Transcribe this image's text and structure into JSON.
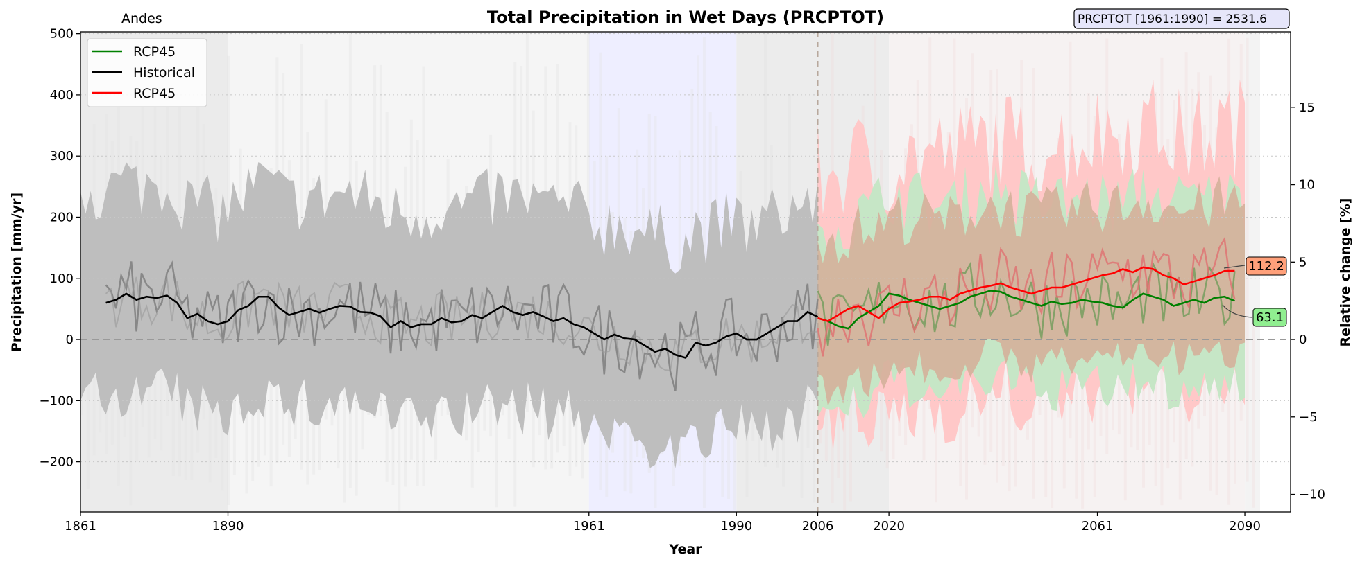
{
  "chart_data": {
    "type": "line",
    "title": "Total Precipitation in Wet Days (PRCPTOT)",
    "region": "Andes",
    "reference_box": "PRCPTOT [1961:1990] = 2531.6",
    "xlabel": "Year",
    "ylabel": "Precipitation [mm/yr]",
    "ylabel_right": "Relative change [%]",
    "xlim": [
      1861,
      2099
    ],
    "ylim": [
      -282,
      503
    ],
    "ylim_right": [
      -11.14,
      19.87
    ],
    "x_ticks": [
      1861,
      1890,
      1961,
      1990,
      2006,
      2020,
      2061,
      2090
    ],
    "y_ticks": [
      -200,
      -100,
      0,
      100,
      200,
      300,
      400,
      500
    ],
    "y_ticks_right": [
      -10,
      -5,
      0,
      5,
      10,
      15
    ],
    "scenario_start": 2006,
    "shaded_period": [
      1961,
      1990
    ],
    "grid": "horizontal dotted",
    "legend_position": "top-left",
    "legend": [
      {
        "name": "RCP45",
        "color": "#008000"
      },
      {
        "name": "Historical",
        "color": "#000000"
      },
      {
        "name": "RCP45",
        "color": "#ff0000"
      }
    ],
    "series": [
      {
        "name": "Historical",
        "color": "#000000",
        "x": [
          1866,
          1868,
          1870,
          1872,
          1874,
          1876,
          1878,
          1880,
          1882,
          1884,
          1886,
          1888,
          1890,
          1892,
          1894,
          1896,
          1898,
          1900,
          1902,
          1904,
          1906,
          1908,
          1910,
          1912,
          1914,
          1916,
          1918,
          1920,
          1922,
          1924,
          1926,
          1928,
          1930,
          1932,
          1934,
          1936,
          1938,
          1940,
          1942,
          1944,
          1946,
          1948,
          1950,
          1952,
          1954,
          1956,
          1958,
          1960,
          1962,
          1964,
          1966,
          1968,
          1970,
          1972,
          1974,
          1976,
          1978,
          1980,
          1982,
          1984,
          1986,
          1988,
          1990,
          1992,
          1994,
          1996,
          1998,
          2000,
          2002,
          2004,
          2006
        ],
        "values": [
          60,
          65,
          75,
          65,
          70,
          68,
          72,
          60,
          35,
          42,
          30,
          25,
          30,
          48,
          55,
          70,
          70,
          52,
          40,
          45,
          50,
          44,
          50,
          55,
          54,
          45,
          44,
          38,
          20,
          30,
          20,
          25,
          25,
          35,
          28,
          30,
          40,
          35,
          45,
          55,
          45,
          40,
          45,
          38,
          30,
          35,
          25,
          20,
          10,
          0,
          8,
          2,
          0,
          -10,
          -20,
          -15,
          -25,
          -30,
          -5,
          -10,
          -5,
          5,
          10,
          0,
          0,
          10,
          20,
          30,
          30,
          45,
          37
        ]
      },
      {
        "name": "RCP45",
        "color": "#008000",
        "x": [
          2006,
          2008,
          2010,
          2012,
          2014,
          2016,
          2018,
          2020,
          2022,
          2024,
          2026,
          2028,
          2030,
          2032,
          2034,
          2036,
          2038,
          2040,
          2042,
          2044,
          2046,
          2048,
          2050,
          2052,
          2054,
          2056,
          2058,
          2060,
          2062,
          2064,
          2066,
          2068,
          2070,
          2072,
          2074,
          2076,
          2078,
          2080,
          2082,
          2084,
          2086,
          2088
        ],
        "values": [
          35,
          30,
          22,
          18,
          35,
          45,
          55,
          75,
          72,
          65,
          60,
          55,
          50,
          55,
          60,
          70,
          75,
          80,
          78,
          70,
          65,
          60,
          55,
          62,
          58,
          60,
          65,
          62,
          60,
          55,
          52,
          65,
          75,
          70,
          65,
          55,
          60,
          65,
          60,
          68,
          70,
          63.1
        ]
      },
      {
        "name": "RCP45",
        "color": "#ff0000",
        "x": [
          2006,
          2008,
          2010,
          2012,
          2014,
          2016,
          2018,
          2020,
          2022,
          2024,
          2026,
          2028,
          2030,
          2032,
          2034,
          2036,
          2038,
          2040,
          2042,
          2044,
          2046,
          2048,
          2050,
          2052,
          2054,
          2056,
          2058,
          2060,
          2062,
          2064,
          2066,
          2068,
          2070,
          2072,
          2074,
          2076,
          2078,
          2080,
          2082,
          2084,
          2086,
          2088
        ],
        "values": [
          35,
          30,
          40,
          50,
          55,
          45,
          35,
          50,
          60,
          62,
          65,
          70,
          70,
          65,
          75,
          80,
          85,
          88,
          92,
          85,
          80,
          75,
          80,
          85,
          85,
          90,
          95,
          100,
          105,
          108,
          115,
          110,
          118,
          115,
          105,
          100,
          90,
          95,
          100,
          105,
          112,
          112.2
        ]
      }
    ],
    "end_labels": [
      {
        "series": "RCP45 red",
        "value": "112.2",
        "color": "#ffa07a"
      },
      {
        "series": "RCP45 green",
        "value": "63.1",
        "color": "#90ee90"
      }
    ]
  }
}
